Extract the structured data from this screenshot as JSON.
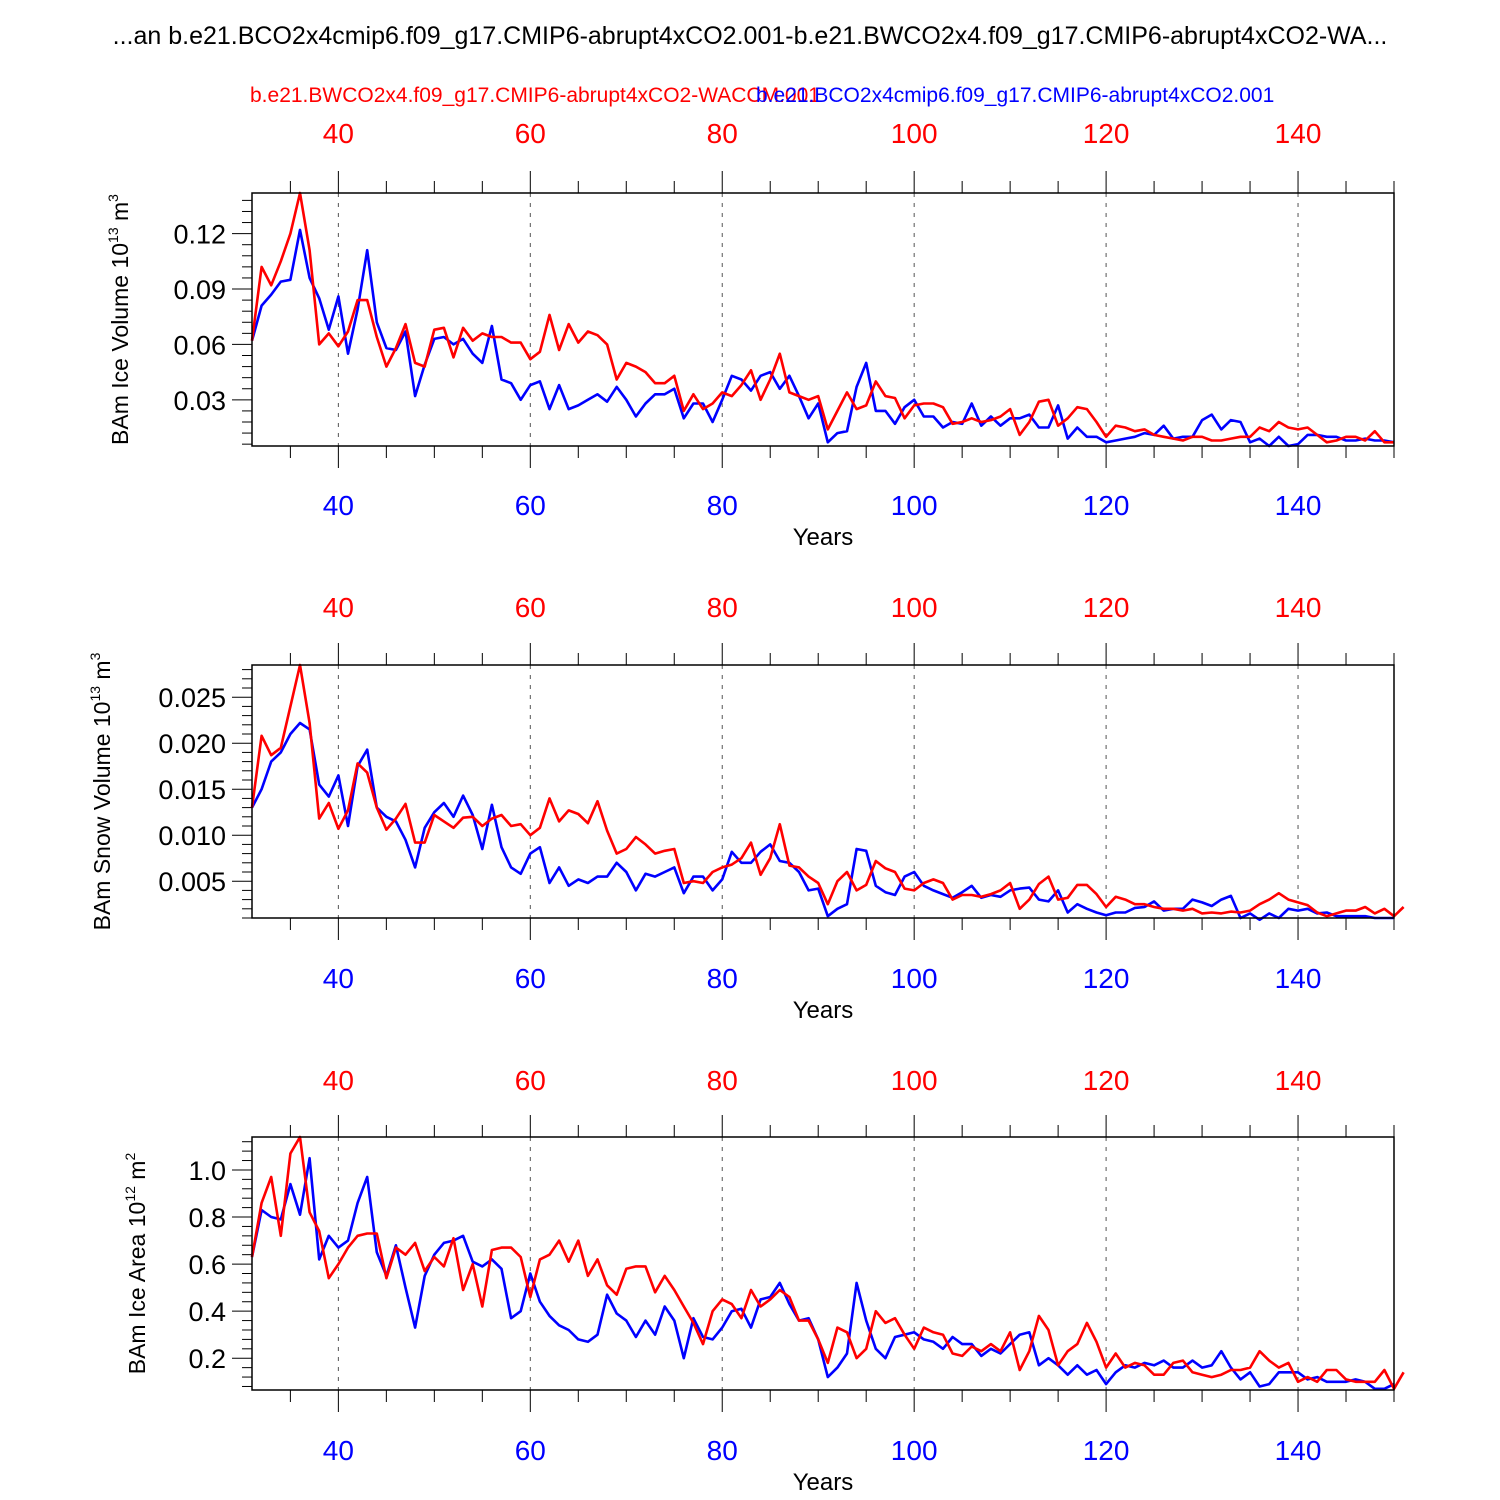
{
  "title": "...an b.e21.BCO2x4cmip6.f09_g17.CMIP6-abrupt4xCO2.001-b.e21.BWCO2x4.f09_g17.CMIP6-abrupt4xCO2-WA...",
  "legend": {
    "red_label": "b.e21.BWCO2x4.f09_g17.CMIP6-abrupt4xCO2-WACCM.001",
    "blue_label": "b.e21.BCO2x4cmip6.f09_g17.CMIP6-abrupt4xCO2.001",
    "red_color": "#ff0000",
    "blue_color": "#0000ff"
  },
  "chart_data": [
    {
      "type": "line",
      "ylabel_main": "BAm Ice Volume 10",
      "ylabel_exp": "13",
      "ylabel_unit": "m",
      "ylabel_unit_exp": "3",
      "xlabel": "Years",
      "xlim": [
        31,
        150
      ],
      "ylim": [
        0.005,
        0.142
      ],
      "xticks": [
        40,
        60,
        80,
        100,
        120,
        140
      ],
      "xtick_labels": [
        "40",
        "60",
        "80",
        "100",
        "120",
        "140"
      ],
      "yticks": [
        0.03,
        0.06,
        0.09,
        0.12
      ],
      "ytick_labels": [
        "0.03",
        "0.06",
        "0.09",
        "0.12"
      ],
      "series": [
        {
          "name": "blue",
          "color": "#0000ff",
          "x_start": 31,
          "values": [
            0.062,
            0.081,
            0.087,
            0.094,
            0.095,
            0.122,
            0.096,
            0.085,
            0.068,
            0.086,
            0.055,
            0.079,
            0.111,
            0.072,
            0.058,
            0.057,
            0.067,
            0.032,
            0.049,
            0.063,
            0.064,
            0.06,
            0.063,
            0.055,
            0.05,
            0.07,
            0.041,
            0.039,
            0.03,
            0.038,
            0.04,
            0.025,
            0.038,
            0.025,
            0.027,
            0.03,
            0.033,
            0.029,
            0.037,
            0.03,
            0.021,
            0.028,
            0.033,
            0.033,
            0.036,
            0.02,
            0.028,
            0.028,
            0.018,
            0.03,
            0.043,
            0.041,
            0.035,
            0.043,
            0.045,
            0.036,
            0.043,
            0.032,
            0.02,
            0.028,
            0.007,
            0.012,
            0.013,
            0.037,
            0.05,
            0.024,
            0.024,
            0.017,
            0.026,
            0.03,
            0.021,
            0.021,
            0.015,
            0.018,
            0.017,
            0.028,
            0.016,
            0.021,
            0.016,
            0.02,
            0.02,
            0.022,
            0.015,
            0.015,
            0.027,
            0.009,
            0.015,
            0.01,
            0.01,
            0.007,
            0.008,
            0.009,
            0.01,
            0.012,
            0.011,
            0.016,
            0.009,
            0.01,
            0.01,
            0.019,
            0.022,
            0.014,
            0.019,
            0.018,
            0.007,
            0.009,
            0.005,
            0.01,
            0.005,
            0.006,
            0.011,
            0.011,
            0.01,
            0.01,
            0.008,
            0.008,
            0.009,
            0.008,
            0.008,
            0.007
          ]
        },
        {
          "name": "red",
          "color": "#ff0000",
          "x_start": 31,
          "values": [
            0.062,
            0.102,
            0.092,
            0.105,
            0.12,
            0.142,
            0.111,
            0.06,
            0.066,
            0.059,
            0.067,
            0.084,
            0.084,
            0.064,
            0.048,
            0.058,
            0.071,
            0.05,
            0.048,
            0.068,
            0.069,
            0.053,
            0.069,
            0.062,
            0.066,
            0.064,
            0.064,
            0.061,
            0.061,
            0.052,
            0.056,
            0.076,
            0.057,
            0.071,
            0.061,
            0.067,
            0.065,
            0.06,
            0.041,
            0.05,
            0.048,
            0.045,
            0.039,
            0.039,
            0.043,
            0.024,
            0.033,
            0.025,
            0.028,
            0.034,
            0.032,
            0.038,
            0.046,
            0.03,
            0.041,
            0.055,
            0.034,
            0.032,
            0.03,
            0.032,
            0.014,
            0.024,
            0.034,
            0.025,
            0.027,
            0.04,
            0.032,
            0.031,
            0.02,
            0.027,
            0.028,
            0.028,
            0.026,
            0.017,
            0.018,
            0.02,
            0.018,
            0.019,
            0.021,
            0.025,
            0.011,
            0.018,
            0.029,
            0.03,
            0.016,
            0.02,
            0.026,
            0.025,
            0.018,
            0.01,
            0.016,
            0.015,
            0.013,
            0.014,
            0.011,
            0.01,
            0.009,
            0.008,
            0.01,
            0.01,
            0.008,
            0.008,
            0.009,
            0.01,
            0.01,
            0.015,
            0.013,
            0.018,
            0.015,
            0.014,
            0.015,
            0.011,
            0.007,
            0.008,
            0.01,
            0.01,
            0.008,
            0.013,
            0.007,
            0.007
          ]
        }
      ]
    },
    {
      "type": "line",
      "ylabel_main": "BAm Snow Volume 10",
      "ylabel_exp": "13",
      "ylabel_unit": "m",
      "ylabel_unit_exp": "3",
      "xlabel": "Years",
      "xlim": [
        31,
        150
      ],
      "ylim": [
        0.001,
        0.0285
      ],
      "xticks": [
        40,
        60,
        80,
        100,
        120,
        140
      ],
      "xtick_labels": [
        "40",
        "60",
        "80",
        "100",
        "120",
        "140"
      ],
      "yticks": [
        0.005,
        0.01,
        0.015,
        0.02,
        0.025
      ],
      "ytick_labels": [
        "0.005",
        "0.010",
        "0.015",
        "0.020",
        "0.025"
      ],
      "series": [
        {
          "name": "blue",
          "color": "#0000ff",
          "x_start": 31,
          "values": [
            0.013,
            0.015,
            0.018,
            0.019,
            0.021,
            0.0222,
            0.0215,
            0.0155,
            0.0142,
            0.0165,
            0.011,
            0.0175,
            0.0193,
            0.013,
            0.012,
            0.0115,
            0.0095,
            0.0065,
            0.0108,
            0.0125,
            0.0135,
            0.012,
            0.0143,
            0.0122,
            0.0085,
            0.0133,
            0.0087,
            0.0065,
            0.0058,
            0.008,
            0.0087,
            0.0048,
            0.0065,
            0.0045,
            0.0052,
            0.0048,
            0.0055,
            0.0055,
            0.007,
            0.006,
            0.004,
            0.0058,
            0.0055,
            0.006,
            0.0065,
            0.0037,
            0.0055,
            0.0055,
            0.004,
            0.0052,
            0.0082,
            0.007,
            0.007,
            0.0082,
            0.009,
            0.0072,
            0.007,
            0.006,
            0.004,
            0.0042,
            0.0012,
            0.002,
            0.0025,
            0.0085,
            0.0083,
            0.0045,
            0.0038,
            0.0035,
            0.0055,
            0.006,
            0.0045,
            0.004,
            0.0036,
            0.0032,
            0.0038,
            0.0045,
            0.0032,
            0.0035,
            0.0033,
            0.004,
            0.0042,
            0.0043,
            0.003,
            0.0028,
            0.004,
            0.0016,
            0.0025,
            0.002,
            0.0016,
            0.0013,
            0.0016,
            0.0016,
            0.0021,
            0.0022,
            0.0028,
            0.0018,
            0.002,
            0.002,
            0.003,
            0.0027,
            0.0023,
            0.003,
            0.0034,
            0.001,
            0.0015,
            0.0008,
            0.0015,
            0.001,
            0.002,
            0.0018,
            0.002,
            0.0015,
            0.0016,
            0.0012,
            0.0012,
            0.0012,
            0.0012,
            0.001,
            0.001,
            0.001
          ]
        },
        {
          "name": "red",
          "color": "#ff0000",
          "x_start": 31,
          "values": [
            0.013,
            0.0208,
            0.0187,
            0.0195,
            0.024,
            0.0285,
            0.0222,
            0.0118,
            0.0135,
            0.0107,
            0.0127,
            0.0178,
            0.0168,
            0.013,
            0.0106,
            0.0118,
            0.0134,
            0.0092,
            0.0092,
            0.0122,
            0.0115,
            0.0108,
            0.0119,
            0.012,
            0.011,
            0.0118,
            0.0122,
            0.011,
            0.0112,
            0.01,
            0.0108,
            0.014,
            0.0115,
            0.0127,
            0.0123,
            0.0113,
            0.0137,
            0.0105,
            0.008,
            0.0085,
            0.0098,
            0.009,
            0.008,
            0.0083,
            0.0085,
            0.0048,
            0.005,
            0.0048,
            0.006,
            0.0065,
            0.0068,
            0.0075,
            0.0092,
            0.0057,
            0.0075,
            0.0112,
            0.0067,
            0.0065,
            0.0055,
            0.0048,
            0.0025,
            0.005,
            0.006,
            0.004,
            0.0046,
            0.0072,
            0.0064,
            0.006,
            0.0042,
            0.004,
            0.0048,
            0.0052,
            0.0048,
            0.003,
            0.0035,
            0.0035,
            0.0033,
            0.0036,
            0.004,
            0.0048,
            0.002,
            0.003,
            0.0047,
            0.0055,
            0.003,
            0.0032,
            0.0046,
            0.0046,
            0.0036,
            0.0022,
            0.0033,
            0.003,
            0.0025,
            0.0025,
            0.0022,
            0.002,
            0.002,
            0.0018,
            0.002,
            0.0015,
            0.0016,
            0.0015,
            0.0017,
            0.0016,
            0.0018,
            0.0025,
            0.003,
            0.0037,
            0.003,
            0.0027,
            0.0024,
            0.0016,
            0.0012,
            0.0015,
            0.0018,
            0.0018,
            0.0022,
            0.0015,
            0.002,
            0.0012,
            0.0022
          ]
        }
      ]
    },
    {
      "type": "line",
      "ylabel_main": "BAm Ice Area 10",
      "ylabel_exp": "12",
      "ylabel_unit": "m",
      "ylabel_unit_exp": "2",
      "xlabel": "Years",
      "xlim": [
        31,
        150
      ],
      "ylim": [
        0.065,
        1.14
      ],
      "xticks": [
        40,
        60,
        80,
        100,
        120,
        140
      ],
      "xtick_labels": [
        "40",
        "60",
        "80",
        "100",
        "120",
        "140"
      ],
      "yticks": [
        0.2,
        0.4,
        0.6,
        0.8,
        1.0
      ],
      "ytick_labels": [
        "0.2",
        "0.4",
        "0.6",
        "0.8",
        "1.0"
      ],
      "series": [
        {
          "name": "blue",
          "color": "#0000ff",
          "x_start": 31,
          "values": [
            0.63,
            0.83,
            0.8,
            0.79,
            0.94,
            0.81,
            1.05,
            0.62,
            0.72,
            0.67,
            0.7,
            0.86,
            0.97,
            0.65,
            0.55,
            0.68,
            0.5,
            0.33,
            0.55,
            0.64,
            0.69,
            0.7,
            0.72,
            0.61,
            0.59,
            0.62,
            0.58,
            0.37,
            0.4,
            0.56,
            0.44,
            0.38,
            0.34,
            0.32,
            0.28,
            0.27,
            0.3,
            0.47,
            0.39,
            0.36,
            0.29,
            0.36,
            0.3,
            0.42,
            0.36,
            0.2,
            0.37,
            0.29,
            0.28,
            0.33,
            0.4,
            0.41,
            0.33,
            0.45,
            0.46,
            0.52,
            0.43,
            0.36,
            0.37,
            0.28,
            0.12,
            0.16,
            0.22,
            0.52,
            0.36,
            0.24,
            0.2,
            0.29,
            0.3,
            0.31,
            0.28,
            0.27,
            0.24,
            0.29,
            0.26,
            0.26,
            0.21,
            0.24,
            0.22,
            0.26,
            0.3,
            0.31,
            0.17,
            0.2,
            0.17,
            0.13,
            0.17,
            0.13,
            0.15,
            0.09,
            0.14,
            0.17,
            0.16,
            0.18,
            0.17,
            0.19,
            0.16,
            0.16,
            0.19,
            0.16,
            0.17,
            0.23,
            0.16,
            0.11,
            0.14,
            0.08,
            0.09,
            0.14,
            0.14,
            0.14,
            0.11,
            0.12,
            0.1,
            0.1,
            0.1,
            0.11,
            0.1,
            0.07,
            0.07,
            0.09
          ]
        },
        {
          "name": "red",
          "color": "#ff0000",
          "x_start": 31,
          "values": [
            0.63,
            0.86,
            0.97,
            0.72,
            1.07,
            1.14,
            0.82,
            0.74,
            0.54,
            0.6,
            0.67,
            0.72,
            0.73,
            0.73,
            0.54,
            0.67,
            0.64,
            0.69,
            0.57,
            0.63,
            0.59,
            0.71,
            0.49,
            0.6,
            0.42,
            0.66,
            0.67,
            0.67,
            0.63,
            0.46,
            0.62,
            0.64,
            0.7,
            0.61,
            0.7,
            0.55,
            0.62,
            0.51,
            0.47,
            0.58,
            0.59,
            0.59,
            0.48,
            0.55,
            0.49,
            0.42,
            0.35,
            0.26,
            0.4,
            0.45,
            0.43,
            0.37,
            0.49,
            0.42,
            0.45,
            0.49,
            0.46,
            0.36,
            0.36,
            0.28,
            0.18,
            0.33,
            0.31,
            0.2,
            0.24,
            0.4,
            0.35,
            0.37,
            0.3,
            0.24,
            0.33,
            0.31,
            0.3,
            0.22,
            0.21,
            0.25,
            0.23,
            0.26,
            0.23,
            0.31,
            0.15,
            0.23,
            0.38,
            0.32,
            0.17,
            0.23,
            0.26,
            0.35,
            0.27,
            0.16,
            0.22,
            0.16,
            0.18,
            0.17,
            0.13,
            0.13,
            0.18,
            0.19,
            0.14,
            0.13,
            0.12,
            0.13,
            0.15,
            0.15,
            0.16,
            0.23,
            0.19,
            0.16,
            0.18,
            0.1,
            0.12,
            0.1,
            0.15,
            0.15,
            0.11,
            0.1,
            0.1,
            0.1,
            0.15,
            0.07,
            0.14
          ]
        }
      ]
    }
  ]
}
